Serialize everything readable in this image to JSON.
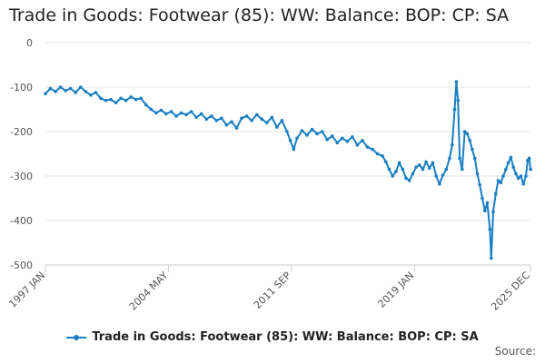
{
  "chart_data": {
    "type": "line",
    "title": "Trade in Goods: Footwear (85): WW: Balance: BOP: CP: SA",
    "xlabel": "",
    "ylabel": "",
    "ylim": [
      -500,
      0
    ],
    "yticks": [
      0,
      -100,
      -200,
      -300,
      -400,
      -500
    ],
    "xticks": [
      {
        "label": "1997 JAN",
        "t": 1997.0
      },
      {
        "label": "2004 MAY",
        "t": 2004.33
      },
      {
        "label": "2011 SEP",
        "t": 2011.67
      },
      {
        "label": "2019 JAN",
        "t": 2019.0
      },
      {
        "label": "2025 DEC",
        "t": 2025.92
      }
    ],
    "xlim": [
      1997.0,
      2025.92
    ],
    "legend": "bottom-center",
    "grid": true,
    "color": "#1a7ec2",
    "series": [
      {
        "name": "Trade in Goods: Footwear (85): WW: Balance: BOP: CP: SA",
        "points": [
          [
            1997.0,
            -115
          ],
          [
            1997.3,
            -103
          ],
          [
            1997.6,
            -110
          ],
          [
            1997.9,
            -100
          ],
          [
            1998.2,
            -108
          ],
          [
            1998.5,
            -103
          ],
          [
            1998.8,
            -112
          ],
          [
            1999.1,
            -100
          ],
          [
            1999.4,
            -110
          ],
          [
            1999.7,
            -118
          ],
          [
            2000.0,
            -112
          ],
          [
            2000.3,
            -125
          ],
          [
            2000.6,
            -130
          ],
          [
            2000.9,
            -128
          ],
          [
            2001.2,
            -135
          ],
          [
            2001.5,
            -125
          ],
          [
            2001.8,
            -130
          ],
          [
            2002.1,
            -122
          ],
          [
            2002.4,
            -128
          ],
          [
            2002.7,
            -125
          ],
          [
            2003.0,
            -140
          ],
          [
            2003.3,
            -150
          ],
          [
            2003.6,
            -158
          ],
          [
            2003.9,
            -152
          ],
          [
            2004.2,
            -160
          ],
          [
            2004.5,
            -155
          ],
          [
            2004.8,
            -165
          ],
          [
            2005.1,
            -158
          ],
          [
            2005.4,
            -162
          ],
          [
            2005.7,
            -155
          ],
          [
            2006.0,
            -168
          ],
          [
            2006.3,
            -160
          ],
          [
            2006.6,
            -172
          ],
          [
            2006.9,
            -165
          ],
          [
            2007.2,
            -175
          ],
          [
            2007.5,
            -170
          ],
          [
            2007.8,
            -185
          ],
          [
            2008.1,
            -178
          ],
          [
            2008.4,
            -192
          ],
          [
            2008.7,
            -170
          ],
          [
            2009.0,
            -165
          ],
          [
            2009.3,
            -175
          ],
          [
            2009.6,
            -162
          ],
          [
            2009.9,
            -172
          ],
          [
            2010.2,
            -180
          ],
          [
            2010.5,
            -168
          ],
          [
            2010.8,
            -190
          ],
          [
            2011.1,
            -175
          ],
          [
            2011.4,
            -200
          ],
          [
            2011.6,
            -220
          ],
          [
            2011.8,
            -240
          ],
          [
            2012.0,
            -215
          ],
          [
            2012.3,
            -198
          ],
          [
            2012.6,
            -208
          ],
          [
            2012.9,
            -195
          ],
          [
            2013.2,
            -205
          ],
          [
            2013.5,
            -200
          ],
          [
            2013.8,
            -218
          ],
          [
            2014.1,
            -210
          ],
          [
            2014.4,
            -225
          ],
          [
            2014.7,
            -215
          ],
          [
            2015.0,
            -222
          ],
          [
            2015.3,
            -212
          ],
          [
            2015.6,
            -230
          ],
          [
            2015.9,
            -220
          ],
          [
            2016.2,
            -235
          ],
          [
            2016.5,
            -240
          ],
          [
            2016.8,
            -250
          ],
          [
            2017.1,
            -255
          ],
          [
            2017.3,
            -268
          ],
          [
            2017.5,
            -285
          ],
          [
            2017.7,
            -300
          ],
          [
            2017.9,
            -290
          ],
          [
            2018.1,
            -270
          ],
          [
            2018.3,
            -285
          ],
          [
            2018.5,
            -305
          ],
          [
            2018.7,
            -310
          ],
          [
            2018.9,
            -295
          ],
          [
            2019.1,
            -280
          ],
          [
            2019.3,
            -275
          ],
          [
            2019.5,
            -285
          ],
          [
            2019.7,
            -268
          ],
          [
            2019.9,
            -282
          ],
          [
            2020.1,
            -270
          ],
          [
            2020.3,
            -300
          ],
          [
            2020.5,
            -318
          ],
          [
            2020.7,
            -298
          ],
          [
            2020.9,
            -285
          ],
          [
            2021.1,
            -260
          ],
          [
            2021.25,
            -230
          ],
          [
            2021.4,
            -150
          ],
          [
            2021.5,
            -88
          ],
          [
            2021.6,
            -130
          ],
          [
            2021.7,
            -260
          ],
          [
            2021.85,
            -285
          ],
          [
            2022.0,
            -200
          ],
          [
            2022.15,
            -205
          ],
          [
            2022.3,
            -220
          ],
          [
            2022.45,
            -240
          ],
          [
            2022.6,
            -260
          ],
          [
            2022.75,
            -295
          ],
          [
            2022.9,
            -320
          ],
          [
            2023.05,
            -350
          ],
          [
            2023.2,
            -378
          ],
          [
            2023.35,
            -360
          ],
          [
            2023.5,
            -420
          ],
          [
            2023.58,
            -485
          ],
          [
            2023.7,
            -380
          ],
          [
            2023.85,
            -340
          ],
          [
            2024.0,
            -310
          ],
          [
            2024.15,
            -315
          ],
          [
            2024.3,
            -300
          ],
          [
            2024.45,
            -285
          ],
          [
            2024.6,
            -270
          ],
          [
            2024.75,
            -258
          ],
          [
            2024.9,
            -280
          ],
          [
            2025.05,
            -295
          ],
          [
            2025.2,
            -305
          ],
          [
            2025.35,
            -300
          ],
          [
            2025.5,
            -318
          ],
          [
            2025.65,
            -300
          ],
          [
            2025.75,
            -265
          ],
          [
            2025.85,
            -260
          ],
          [
            2025.92,
            -285
          ]
        ]
      }
    ],
    "legend_label": "Trade in Goods: Footwear (85): WW: Balance: BOP: CP: SA"
  },
  "source_label": "Source:"
}
